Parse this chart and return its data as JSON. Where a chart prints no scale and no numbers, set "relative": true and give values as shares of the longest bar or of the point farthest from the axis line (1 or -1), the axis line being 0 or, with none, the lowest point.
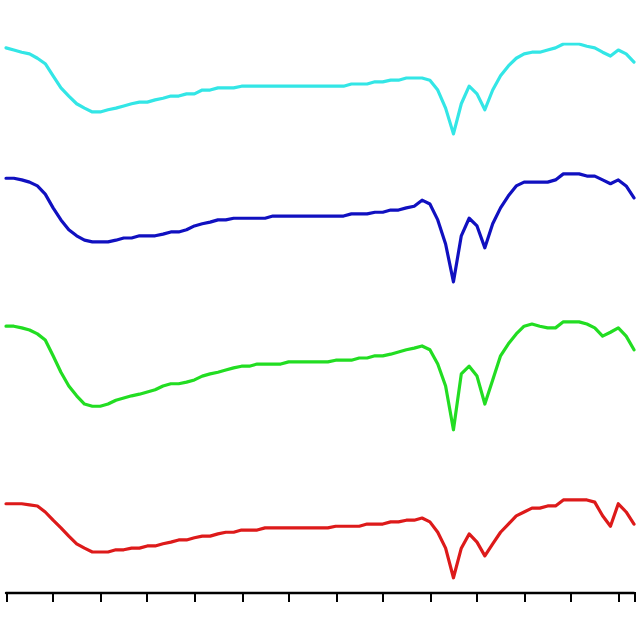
{
  "chart_data": {
    "type": "line",
    "relative": true,
    "categories": [
      null,
      null,
      null,
      null,
      null,
      null,
      null,
      null,
      null,
      null,
      null,
      null,
      null,
      null,
      null,
      null,
      null,
      null,
      null,
      null,
      null,
      null,
      null,
      null,
      null,
      null,
      null,
      null,
      null,
      null,
      null,
      null,
      null,
      null,
      null,
      null,
      null,
      null,
      null,
      null,
      null,
      null,
      null,
      null,
      null,
      null,
      null,
      null,
      null,
      null,
      null,
      null,
      null,
      null,
      null,
      null,
      null,
      null,
      null,
      null,
      null,
      null,
      null,
      null,
      null,
      null,
      null,
      null,
      null,
      null,
      null,
      null,
      null,
      null,
      null,
      null,
      null,
      null,
      null,
      null,
      null
    ],
    "series": [
      {
        "color": "#33e6e6",
        "values": [
          0.993,
          0.989,
          0.985,
          0.982,
          0.974,
          0.964,
          0.942,
          0.92,
          0.905,
          0.891,
          0.883,
          0.876,
          0.876,
          0.88,
          0.883,
          0.887,
          0.891,
          0.894,
          0.894,
          0.898,
          0.901,
          0.905,
          0.905,
          0.909,
          0.909,
          0.916,
          0.916,
          0.92,
          0.92,
          0.92,
          0.923,
          0.923,
          0.923,
          0.923,
          0.923,
          0.923,
          0.923,
          0.923,
          0.923,
          0.923,
          0.923,
          0.923,
          0.923,
          0.923,
          0.927,
          0.927,
          0.927,
          0.931,
          0.931,
          0.934,
          0.934,
          0.938,
          0.938,
          0.938,
          0.934,
          0.916,
          0.883,
          0.836,
          0.891,
          0.923,
          0.909,
          0.88,
          0.916,
          0.942,
          0.96,
          0.974,
          0.982,
          0.985,
          0.985,
          0.989,
          0.993,
          1,
          1,
          1,
          0.996,
          0.993,
          0.985,
          0.978,
          0.989,
          0.982,
          0.967
        ]
      },
      {
        "color": "#1010c0",
        "values": [
          0.755,
          0.755,
          0.752,
          0.748,
          0.741,
          0.726,
          0.701,
          0.679,
          0.661,
          0.65,
          0.642,
          0.639,
          0.639,
          0.639,
          0.642,
          0.646,
          0.646,
          0.65,
          0.65,
          0.65,
          0.653,
          0.657,
          0.657,
          0.661,
          0.668,
          0.672,
          0.675,
          0.679,
          0.679,
          0.682,
          0.682,
          0.682,
          0.682,
          0.682,
          0.686,
          0.686,
          0.686,
          0.686,
          0.686,
          0.686,
          0.686,
          0.686,
          0.686,
          0.686,
          0.69,
          0.69,
          0.69,
          0.693,
          0.693,
          0.697,
          0.697,
          0.701,
          0.704,
          0.715,
          0.708,
          0.679,
          0.635,
          0.566,
          0.65,
          0.682,
          0.668,
          0.628,
          0.672,
          0.701,
          0.723,
          0.741,
          0.748,
          0.748,
          0.748,
          0.748,
          0.752,
          0.763,
          0.763,
          0.763,
          0.759,
          0.759,
          0.752,
          0.745,
          0.752,
          0.741,
          0.719
        ]
      },
      {
        "color": "#22dd22",
        "values": [
          0.485,
          0.485,
          0.482,
          0.478,
          0.471,
          0.46,
          0.431,
          0.401,
          0.376,
          0.358,
          0.343,
          0.339,
          0.339,
          0.343,
          0.35,
          0.354,
          0.358,
          0.361,
          0.365,
          0.369,
          0.376,
          0.38,
          0.38,
          0.383,
          0.387,
          0.394,
          0.398,
          0.401,
          0.405,
          0.409,
          0.412,
          0.412,
          0.416,
          0.416,
          0.416,
          0.416,
          0.42,
          0.42,
          0.42,
          0.42,
          0.42,
          0.42,
          0.423,
          0.423,
          0.423,
          0.427,
          0.427,
          0.431,
          0.431,
          0.434,
          0.438,
          0.442,
          0.445,
          0.449,
          0.442,
          0.416,
          0.376,
          0.296,
          0.398,
          0.412,
          0.394,
          0.343,
          0.387,
          0.431,
          0.453,
          0.471,
          0.485,
          0.489,
          0.485,
          0.482,
          0.482,
          0.493,
          0.493,
          0.493,
          0.489,
          0.482,
          0.467,
          0.474,
          0.482,
          0.467,
          0.442
        ]
      },
      {
        "color": "#dd1a1a",
        "values": [
          0.161,
          0.161,
          0.161,
          0.159,
          0.157,
          0.146,
          0.131,
          0.117,
          0.102,
          0.088,
          0.08,
          0.073,
          0.073,
          0.073,
          0.077,
          0.077,
          0.08,
          0.08,
          0.084,
          0.084,
          0.088,
          0.091,
          0.095,
          0.095,
          0.099,
          0.102,
          0.102,
          0.106,
          0.109,
          0.109,
          0.113,
          0.113,
          0.113,
          0.117,
          0.117,
          0.117,
          0.117,
          0.117,
          0.117,
          0.117,
          0.117,
          0.117,
          0.12,
          0.12,
          0.12,
          0.12,
          0.124,
          0.124,
          0.124,
          0.128,
          0.128,
          0.131,
          0.131,
          0.135,
          0.128,
          0.109,
          0.08,
          0.026,
          0.08,
          0.106,
          0.091,
          0.066,
          0.088,
          0.109,
          0.124,
          0.139,
          0.146,
          0.153,
          0.153,
          0.157,
          0.157,
          0.168,
          0.168,
          0.168,
          0.168,
          0.164,
          0.139,
          0.12,
          0.161,
          0.146,
          0.124
        ]
      }
    ]
  }
}
